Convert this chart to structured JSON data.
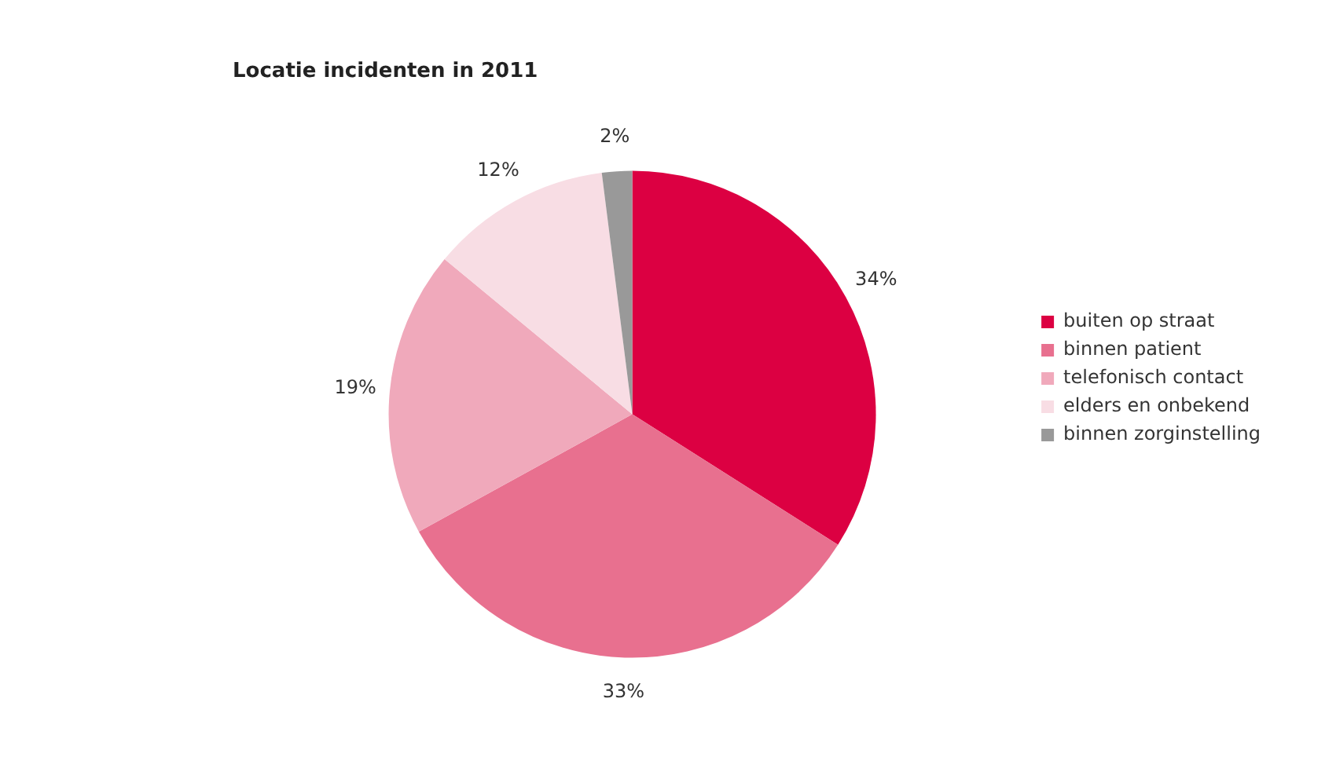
{
  "chart_data": {
    "type": "pie",
    "title": "Locatie incidenten in 2011",
    "categories": [
      "buiten op straat",
      "binnen patient",
      "telefonisch contact",
      "elders en onbekend",
      "binnen zorginstelling"
    ],
    "values": [
      34,
      33,
      19,
      12,
      2
    ],
    "value_labels": [
      "34%",
      "33%",
      "19%",
      "12%",
      "2%"
    ],
    "colors": [
      "#dc0042",
      "#e8708f",
      "#f0a9bb",
      "#f8dde4",
      "#999999"
    ],
    "legend": "right"
  }
}
